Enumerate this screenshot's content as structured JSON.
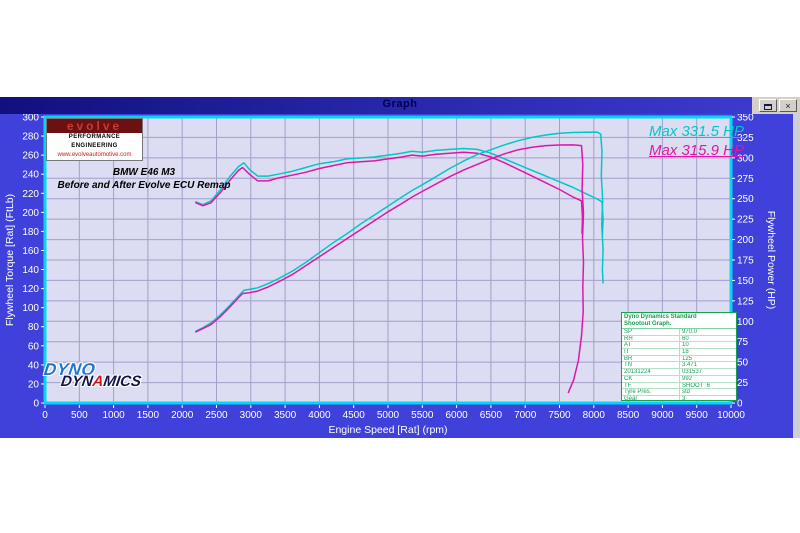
{
  "window": {
    "title": "Graph"
  },
  "icons": {
    "close": "×"
  },
  "evolve_logo": {
    "brand": "evolve",
    "tagline": "PERFORMANCE ENGINEERING",
    "url": "www.evolveautomotive.com"
  },
  "annotations": {
    "vehicle_line1": "BMW E46 M3",
    "vehicle_line2": "Before and After Evolve ECU Remap"
  },
  "dyno_logo": {
    "word1": "DYNO",
    "word2_pre": "DYN",
    "word2_a": "A",
    "word2_post": "MICS"
  },
  "info_table": {
    "header_line1": "Dyno Dynamics Standard",
    "header_line2": "Shootout Graph.",
    "rows": [
      [
        "SP",
        "970.0"
      ],
      [
        "RH",
        "60"
      ],
      [
        "AT",
        "10"
      ],
      [
        "IT",
        "18"
      ],
      [
        "BR",
        "125"
      ],
      [
        "TN",
        "3.471"
      ],
      [
        "20131224",
        "031537"
      ],
      [
        "CK",
        "992"
      ],
      [
        "TF",
        "SHOOT_6"
      ],
      [
        "Tyre Pres.",
        "std"
      ],
      [
        "Gear",
        "3"
      ]
    ]
  },
  "colors": {
    "window_background": "#4040da",
    "plot_background": "#dcdcf2",
    "grid": "#a0a0cb",
    "plot_border": "#00d8f8",
    "after_color": "#00c8c8",
    "before_color": "#e016a6",
    "table_green": "#10a050"
  },
  "chart_data": {
    "type": "line",
    "title": "Graph",
    "grid": true,
    "legend_position": "top-right",
    "x_axis": {
      "label": "Engine Speed [Rat] (rpm)",
      "min": 0,
      "max": 10000,
      "tick_step": 500
    },
    "y_left": {
      "label": "Flywheel Torque [Rat] (FtLb)",
      "min": 0,
      "max": 300,
      "tick_step": 20
    },
    "y_right": {
      "label": "Flywheel Power (HP)",
      "min": 0,
      "max": 350,
      "tick_step": 25
    },
    "legend": [
      {
        "label": "Max 331.5 HP",
        "color": "#00c8c8",
        "series": "after-power"
      },
      {
        "label": "Max 315.9 HP",
        "color": "#e016a6",
        "series": "before-power"
      }
    ],
    "max_power_after_hp": 331.5,
    "max_power_before_hp": 315.9,
    "series": [
      {
        "name": "after-torque",
        "axis": "left",
        "color": "#00c8c8",
        "points": [
          [
            2200,
            211
          ],
          [
            2300,
            208
          ],
          [
            2420,
            212
          ],
          [
            2560,
            224
          ],
          [
            2700,
            238
          ],
          [
            2820,
            248
          ],
          [
            2900,
            252
          ],
          [
            2980,
            245
          ],
          [
            3100,
            238
          ],
          [
            3250,
            238
          ],
          [
            3400,
            240
          ],
          [
            3600,
            243
          ],
          [
            3800,
            247
          ],
          [
            4000,
            251
          ],
          [
            4200,
            253
          ],
          [
            4400,
            256
          ],
          [
            4600,
            257
          ],
          [
            4800,
            258
          ],
          [
            5000,
            260
          ],
          [
            5200,
            262
          ],
          [
            5350,
            264
          ],
          [
            5500,
            263
          ],
          [
            5700,
            265
          ],
          [
            5900,
            266
          ],
          [
            6100,
            267
          ],
          [
            6300,
            266
          ],
          [
            6500,
            262
          ],
          [
            6700,
            256
          ],
          [
            6900,
            250
          ],
          [
            7100,
            244
          ],
          [
            7300,
            238
          ],
          [
            7500,
            232
          ],
          [
            7700,
            226
          ],
          [
            7900,
            219
          ],
          [
            8050,
            214
          ],
          [
            8120,
            211
          ],
          [
            8135,
            193
          ],
          [
            8125,
            176
          ]
        ]
      },
      {
        "name": "before-torque",
        "axis": "left",
        "color": "#e016a6",
        "points": [
          [
            2200,
            210
          ],
          [
            2300,
            207
          ],
          [
            2420,
            210
          ],
          [
            2560,
            221
          ],
          [
            2700,
            234
          ],
          [
            2820,
            244
          ],
          [
            2880,
            247
          ],
          [
            2980,
            240
          ],
          [
            3100,
            233
          ],
          [
            3250,
            233
          ],
          [
            3400,
            236
          ],
          [
            3600,
            239
          ],
          [
            3800,
            242
          ],
          [
            4000,
            246
          ],
          [
            4200,
            249
          ],
          [
            4400,
            252
          ],
          [
            4600,
            253
          ],
          [
            4800,
            254
          ],
          [
            5000,
            256
          ],
          [
            5200,
            258
          ],
          [
            5350,
            260
          ],
          [
            5500,
            259
          ],
          [
            5700,
            261
          ],
          [
            5900,
            262
          ],
          [
            6100,
            263
          ],
          [
            6300,
            262
          ],
          [
            6500,
            258
          ],
          [
            6700,
            252
          ],
          [
            6900,
            245
          ],
          [
            7100,
            238
          ],
          [
            7300,
            231
          ],
          [
            7500,
            224
          ],
          [
            7700,
            216
          ],
          [
            7820,
            212
          ],
          [
            7835,
            194
          ],
          [
            7828,
            178
          ]
        ]
      },
      {
        "name": "after-power",
        "axis": "right",
        "color": "#00c8c8",
        "points": [
          [
            2200,
            88
          ],
          [
            2300,
            92
          ],
          [
            2420,
            98
          ],
          [
            2560,
            108
          ],
          [
            2700,
            120
          ],
          [
            2820,
            131
          ],
          [
            2900,
            138
          ],
          [
            2980,
            139
          ],
          [
            3100,
            141
          ],
          [
            3250,
            146
          ],
          [
            3400,
            152
          ],
          [
            3600,
            161
          ],
          [
            3800,
            172
          ],
          [
            4000,
            184
          ],
          [
            4200,
            196
          ],
          [
            4400,
            207
          ],
          [
            4600,
            219
          ],
          [
            4800,
            230
          ],
          [
            5000,
            241
          ],
          [
            5200,
            252
          ],
          [
            5350,
            260
          ],
          [
            5500,
            267
          ],
          [
            5700,
            277
          ],
          [
            5900,
            287
          ],
          [
            6100,
            296
          ],
          [
            6300,
            304
          ],
          [
            6500,
            310
          ],
          [
            6700,
            316
          ],
          [
            6900,
            321
          ],
          [
            7100,
            325
          ],
          [
            7300,
            328
          ],
          [
            7500,
            330
          ],
          [
            7700,
            331
          ],
          [
            7900,
            331.3
          ],
          [
            8050,
            331.5
          ],
          [
            8100,
            329
          ],
          [
            8120,
            308
          ],
          [
            8110,
            278
          ],
          [
            8130,
            248
          ],
          [
            8115,
            218
          ],
          [
            8135,
            188
          ],
          [
            8125,
            163
          ],
          [
            8135,
            147
          ]
        ]
      },
      {
        "name": "before-power",
        "axis": "right",
        "color": "#e016a6",
        "points": [
          [
            2200,
            87
          ],
          [
            2300,
            91
          ],
          [
            2420,
            96
          ],
          [
            2560,
            106
          ],
          [
            2700,
            118
          ],
          [
            2820,
            129
          ],
          [
            2880,
            134
          ],
          [
            2980,
            135
          ],
          [
            3100,
            137
          ],
          [
            3250,
            142
          ],
          [
            3400,
            148
          ],
          [
            3600,
            157
          ],
          [
            3800,
            168
          ],
          [
            4000,
            179
          ],
          [
            4200,
            190
          ],
          [
            4400,
            201
          ],
          [
            4600,
            212
          ],
          [
            4800,
            223
          ],
          [
            5000,
            234
          ],
          [
            5200,
            244
          ],
          [
            5350,
            252
          ],
          [
            5500,
            259
          ],
          [
            5700,
            268
          ],
          [
            5900,
            277
          ],
          [
            6100,
            285
          ],
          [
            6300,
            292
          ],
          [
            6500,
            299
          ],
          [
            6700,
            305
          ],
          [
            6900,
            310
          ],
          [
            7100,
            313
          ],
          [
            7300,
            315
          ],
          [
            7500,
            315.7
          ],
          [
            7700,
            315.9
          ],
          [
            7820,
            315
          ],
          [
            7840,
            292
          ],
          [
            7830,
            262
          ],
          [
            7850,
            232
          ],
          [
            7835,
            202
          ],
          [
            7850,
            172
          ],
          [
            7840,
            142
          ],
          [
            7845,
            112
          ],
          [
            7820,
            82
          ],
          [
            7775,
            52
          ],
          [
            7705,
            28
          ],
          [
            7630,
            13
          ]
        ]
      }
    ]
  }
}
